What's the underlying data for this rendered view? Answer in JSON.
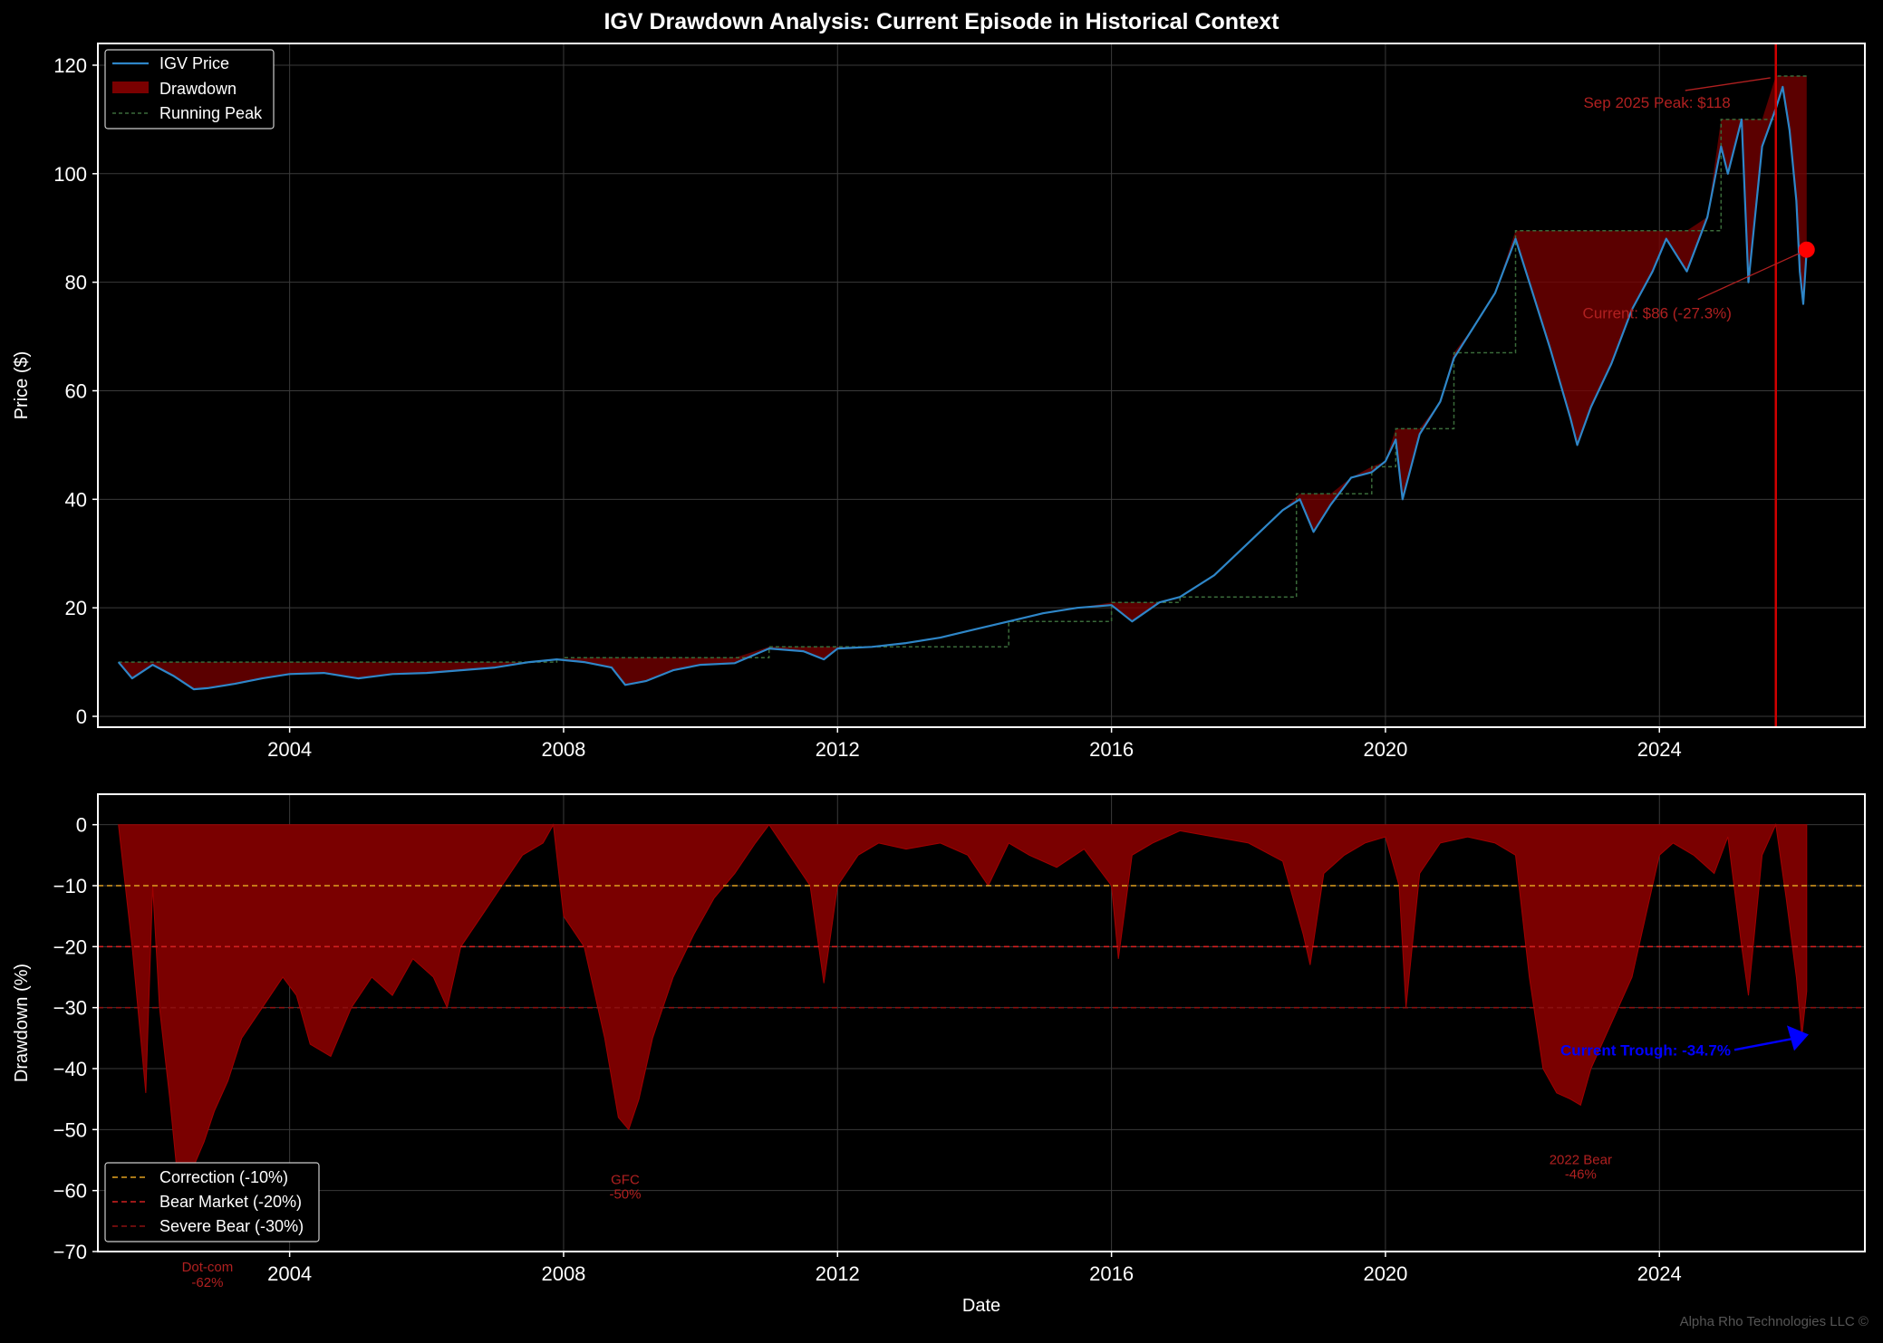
{
  "title": "IGV Drawdown Analysis: Current Episode in Historical Context",
  "watermark": "Alpha Rho Technologies LLC ©",
  "colors": {
    "background": "#000000",
    "price_line": "#2e86c8",
    "drawdown_fill": "#7a0000",
    "running_peak": "#3a6b3a",
    "peak_marker_line": "#d00000",
    "current_dot": "#ff0000",
    "correction_line": "#e0a020",
    "bear_line": "#d02020",
    "severe_line": "#8b1010",
    "trough_annotation": "#0000ff",
    "episode_label": "#b02020"
  },
  "chart_data": [
    {
      "type": "line",
      "name": "price_panel",
      "xlabel": "",
      "ylabel": "Price ($)",
      "xlim": [
        2001.2,
        2027.0
      ],
      "ylim": [
        -2,
        124
      ],
      "xticks": [
        2004,
        2008,
        2012,
        2016,
        2020,
        2024
      ],
      "yticks": [
        0,
        20,
        40,
        60,
        80,
        100,
        120
      ],
      "grid": true,
      "legend_position": "upper-left",
      "legend": [
        "IGV Price",
        "Drawdown",
        "Running Peak"
      ],
      "series": [
        {
          "name": "IGV Price",
          "x": [
            2001.5,
            2001.7,
            2002.0,
            2002.3,
            2002.6,
            2002.8,
            2003.2,
            2003.6,
            2004.0,
            2004.5,
            2005.0,
            2005.5,
            2006.0,
            2006.5,
            2007.0,
            2007.5,
            2007.9,
            2008.3,
            2008.7,
            2008.9,
            2009.2,
            2009.6,
            2010.0,
            2010.5,
            2011.0,
            2011.5,
            2011.8,
            2012.0,
            2012.5,
            2013.0,
            2013.5,
            2014.0,
            2014.5,
            2015.0,
            2015.5,
            2016.0,
            2016.3,
            2016.7,
            2017.0,
            2017.5,
            2018.0,
            2018.5,
            2018.75,
            2018.95,
            2019.2,
            2019.5,
            2019.8,
            2020.0,
            2020.15,
            2020.25,
            2020.5,
            2020.8,
            2021.0,
            2021.3,
            2021.6,
            2021.9,
            2022.1,
            2022.4,
            2022.7,
            2022.8,
            2023.0,
            2023.3,
            2023.6,
            2023.9,
            2024.1,
            2024.4,
            2024.7,
            2024.9,
            2025.0,
            2025.2,
            2025.3,
            2025.5,
            2025.7,
            2025.8,
            2025.9,
            2026.0,
            2026.05,
            2026.1,
            2026.15
          ],
          "values": [
            10,
            7,
            9.5,
            7.5,
            5,
            5.2,
            6,
            7,
            7.8,
            8,
            7,
            7.8,
            8,
            8.5,
            9,
            10,
            10.5,
            10,
            9,
            5.8,
            6.5,
            8.5,
            9.5,
            9.8,
            12.5,
            12,
            10.5,
            12.5,
            12.8,
            13.5,
            14.5,
            16,
            17.5,
            19,
            20,
            20.5,
            17.5,
            21,
            22,
            26,
            32,
            38,
            40,
            34,
            39,
            44,
            45,
            47,
            51,
            40,
            52,
            58,
            66,
            72,
            78,
            88,
            80,
            68,
            55,
            50,
            57,
            65,
            75,
            82,
            88,
            82,
            92,
            105,
            100,
            110,
            80,
            105,
            112,
            116,
            108,
            95,
            82,
            76,
            86
          ]
        },
        {
          "name": "Running Peak",
          "x": [
            2001.5,
            2007.9,
            2008.0,
            2011.0,
            2014.5,
            2016.0,
            2017.0,
            2018.7,
            2019.8,
            2020.15,
            2021.0,
            2021.9,
            2024.9,
            2025.7,
            2026.15
          ],
          "values": [
            10,
            10.5,
            10.8,
            12.8,
            17.5,
            21,
            22,
            41,
            46,
            53,
            67,
            89.5,
            110,
            118,
            118
          ]
        }
      ],
      "annotations": [
        {
          "text": "Sep 2025 Peak: $118",
          "x": 2025.7,
          "y": 118
        },
        {
          "text": "Current: $86 (-27.3%)",
          "x": 2026.15,
          "y": 86
        }
      ],
      "vline_x": 2025.7
    },
    {
      "type": "area",
      "name": "drawdown_panel",
      "xlabel": "Date",
      "ylabel": "Drawdown (%)",
      "xlim": [
        2001.2,
        2027.0
      ],
      "ylim": [
        -70,
        5
      ],
      "xticks": [
        2004,
        2008,
        2012,
        2016,
        2020,
        2024
      ],
      "yticks": [
        0,
        -10,
        -20,
        -30,
        -40,
        -50,
        -60,
        -70
      ],
      "grid": true,
      "legend_position": "lower-left",
      "legend": [
        "Correction (-10%)",
        "Bear Market (-20%)",
        "Severe Bear (-30%)"
      ],
      "thresholds": [
        -10,
        -20,
        -30
      ],
      "series": [
        {
          "name": "Drawdown",
          "x": [
            2001.5,
            2001.7,
            2001.9,
            2002.0,
            2002.1,
            2002.25,
            2002.4,
            2002.6,
            2002.75,
            2002.9,
            2003.1,
            2003.3,
            2003.6,
            2003.9,
            2004.1,
            2004.3,
            2004.6,
            2004.9,
            2005.2,
            2005.5,
            2005.8,
            2006.1,
            2006.3,
            2006.5,
            2006.8,
            2007.1,
            2007.4,
            2007.7,
            2007.85,
            2008.0,
            2008.3,
            2008.6,
            2008.8,
            2008.95,
            2009.1,
            2009.3,
            2009.6,
            2009.9,
            2010.2,
            2010.5,
            2010.8,
            2011.0,
            2011.3,
            2011.6,
            2011.8,
            2012.0,
            2012.3,
            2012.6,
            2013.0,
            2013.5,
            2013.9,
            2014.2,
            2014.5,
            2014.8,
            2015.2,
            2015.6,
            2016.0,
            2016.1,
            2016.3,
            2016.6,
            2017.0,
            2017.5,
            2018.0,
            2018.5,
            2018.8,
            2018.9,
            2019.1,
            2019.4,
            2019.7,
            2020.0,
            2020.2,
            2020.3,
            2020.5,
            2020.8,
            2021.2,
            2021.6,
            2021.9,
            2022.1,
            2022.3,
            2022.5,
            2022.7,
            2022.85,
            2023.0,
            2023.2,
            2023.4,
            2023.6,
            2023.8,
            2024.0,
            2024.2,
            2024.5,
            2024.8,
            2025.0,
            2025.2,
            2025.3,
            2025.5,
            2025.7,
            2025.85,
            2026.0,
            2026.08,
            2026.15
          ],
          "values": [
            0,
            -20,
            -44,
            -10,
            -30,
            -45,
            -62,
            -56,
            -52,
            -47,
            -42,
            -35,
            -30,
            -25,
            -28,
            -36,
            -38,
            -30,
            -25,
            -28,
            -22,
            -25,
            -30,
            -20,
            -15,
            -10,
            -5,
            -3,
            0,
            -15,
            -20,
            -35,
            -48,
            -50,
            -45,
            -35,
            -25,
            -18,
            -12,
            -8,
            -3,
            0,
            -5,
            -10,
            -26,
            -10,
            -5,
            -3,
            -4,
            -3,
            -5,
            -10,
            -3,
            -5,
            -7,
            -4,
            -10,
            -22,
            -5,
            -3,
            -1,
            -2,
            -3,
            -6,
            -18,
            -23,
            -8,
            -5,
            -3,
            -2,
            -10,
            -30,
            -8,
            -3,
            -2,
            -3,
            -5,
            -25,
            -40,
            -44,
            -45,
            -46,
            -40,
            -35,
            -30,
            -25,
            -15,
            -5,
            -3,
            -5,
            -8,
            -2,
            -20,
            -28,
            -5,
            0,
            -12,
            -25,
            -34.7,
            -27.3
          ]
        }
      ],
      "annotations": [
        {
          "text": "Current Trough: -34.7%",
          "x": 2026.1,
          "y": -34.7
        },
        {
          "text": "Dot-com\n-62%",
          "x": 2002.8,
          "y": -62
        },
        {
          "text": "GFC\n-50%",
          "x": 2008.9,
          "y": -50
        },
        {
          "text": "2022 Bear\n-46%",
          "x": 2022.85,
          "y": -46
        }
      ]
    }
  ],
  "labels": {
    "sep_peak": "Sep 2025 Peak: $118",
    "current_price": "Current: $86 (-27.3%)",
    "current_trough": "Current Trough: -34.7%",
    "dotcom_l1": "Dot-com",
    "dotcom_l2": "-62%",
    "gfc_l1": "GFC",
    "gfc_l2": "-50%",
    "bear22_l1": "2022 Bear",
    "bear22_l2": "-46%"
  }
}
